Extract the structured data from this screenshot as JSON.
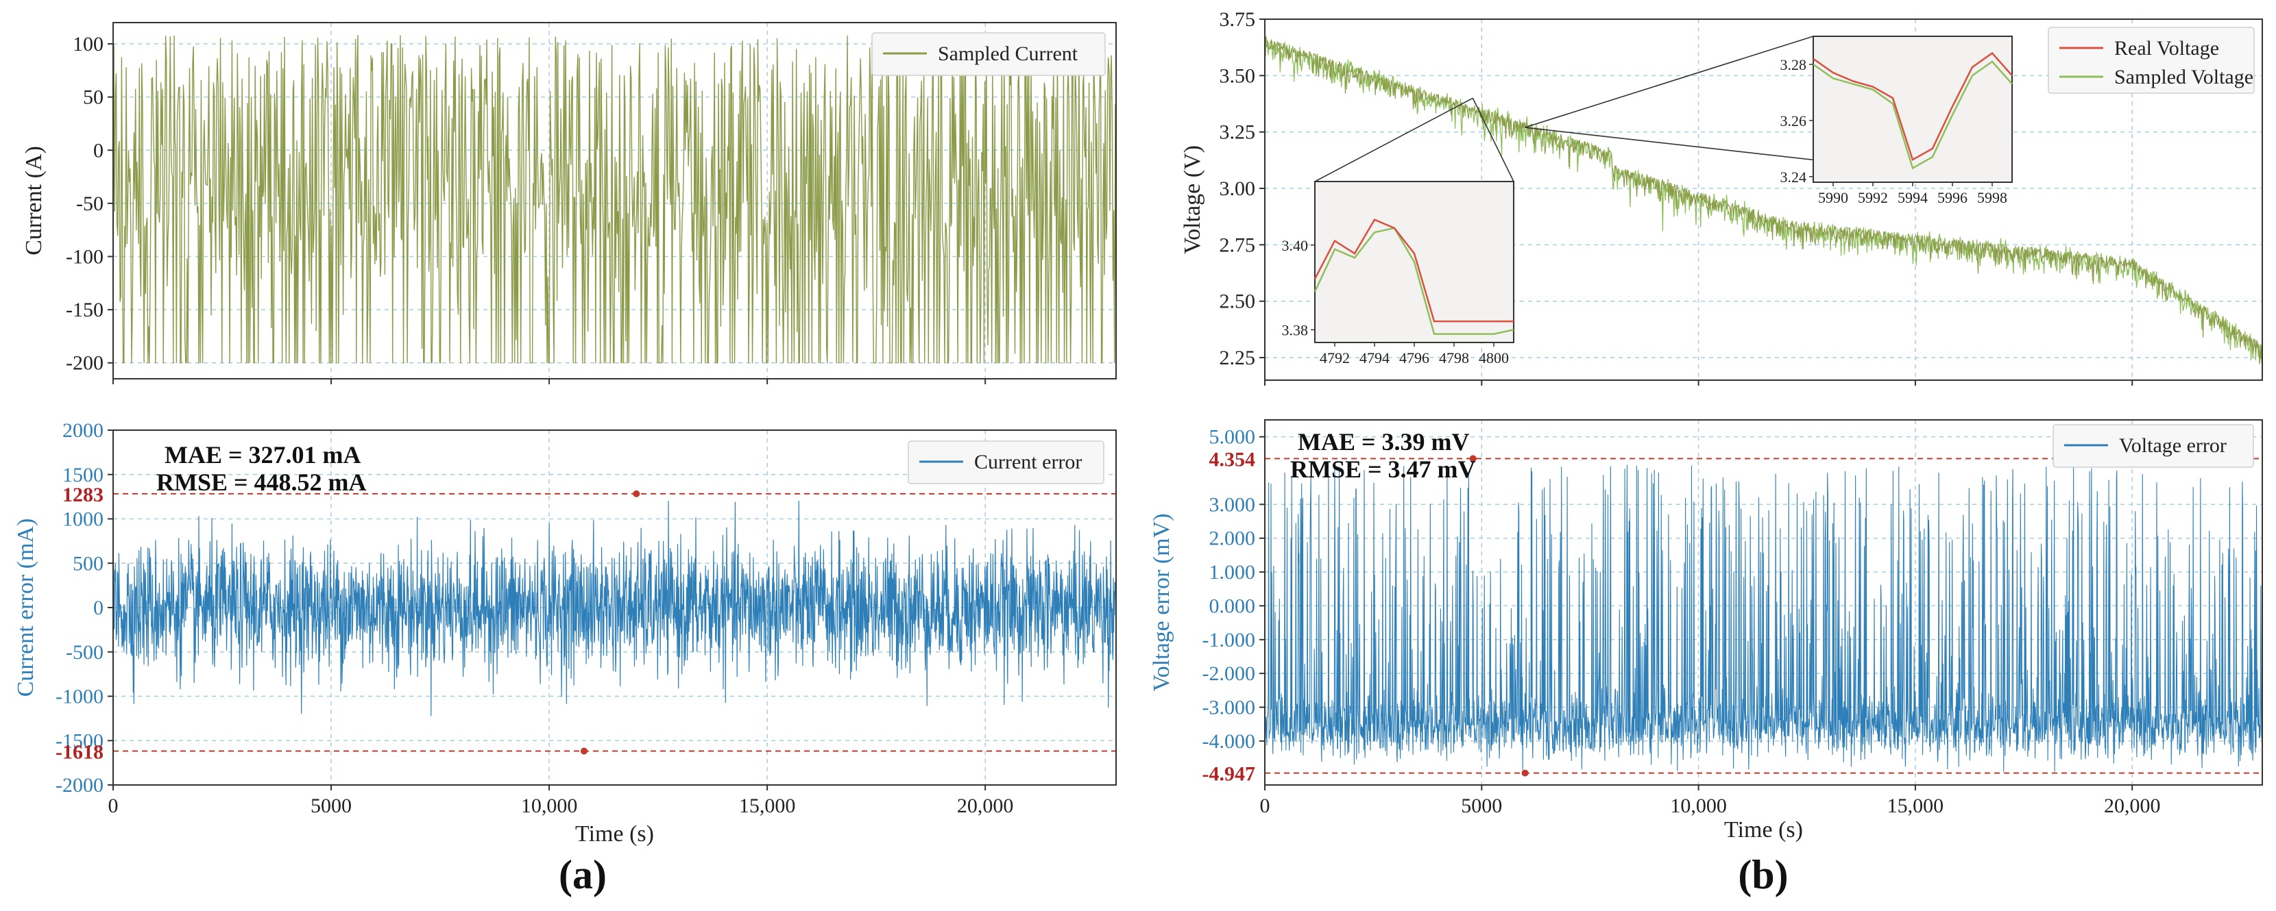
{
  "chart_data": [
    {
      "type": "line",
      "id": "current",
      "series": [
        {
          "name": "Sampled Current",
          "color": "#8c9b4a"
        }
      ],
      "xlim": [
        0,
        23000
      ],
      "ylim": [
        -215,
        120
      ],
      "yticks": [
        100,
        50,
        0,
        -50,
        -100,
        -150,
        -200
      ],
      "ylabel": "Current (A)",
      "xlabel": "",
      "grid": true,
      "legend_position": "top-right"
    },
    {
      "type": "line",
      "id": "current_error",
      "series": [
        {
          "name": "Current error",
          "color": "#2e7fb8"
        }
      ],
      "xlim": [
        0,
        23000
      ],
      "ylim": [
        -2000,
        2000
      ],
      "xticks": [
        "0",
        "5000",
        "10,000",
        "15,000",
        "20,000"
      ],
      "xtick_values": [
        0,
        5000,
        10000,
        15000,
        20000
      ],
      "yticks": [
        2000,
        1500,
        1000,
        500,
        0,
        -500,
        -1000,
        -1500,
        -2000
      ],
      "ylabel": "Current error (mA)",
      "xlabel": "Time (s)",
      "annotations": [
        "MAE = 327.01 mA",
        "RMSE = 448.52 mA"
      ],
      "max_line": {
        "value": 1283,
        "label": "1283",
        "x": 12000
      },
      "min_line": {
        "value": -1618,
        "label": "-1618",
        "x": 10800
      },
      "grid": true,
      "legend_position": "top-right",
      "panel_label": "(a)"
    },
    {
      "type": "line",
      "id": "voltage",
      "series": [
        {
          "name": "Real Voltage",
          "color": "#d9503f"
        },
        {
          "name": "Sampled Voltage",
          "color": "#8fbf5a"
        }
      ],
      "xlim": [
        0,
        23000
      ],
      "ylim": [
        2.15,
        3.75
      ],
      "yticks": [
        "3.75",
        "3.50",
        "3.25",
        "3.00",
        "2.75",
        "2.50",
        "2.25"
      ],
      "ytick_values": [
        3.75,
        3.5,
        3.25,
        3.0,
        2.75,
        2.5,
        2.25
      ],
      "ylabel": "Voltage (V)",
      "xlabel": "",
      "grid": true,
      "legend_position": "top-right",
      "inset_left": {
        "xlim": [
          4791,
          4801
        ],
        "ylim": [
          3.377,
          3.415
        ],
        "xticks": [
          4792,
          4794,
          4796,
          4798,
          4800
        ],
        "yticks": [
          "3.40",
          "3.38"
        ],
        "ytick_values": [
          3.4,
          3.38
        ],
        "real": [
          [
            4791,
            3.392
          ],
          [
            4792,
            3.401
          ],
          [
            4793,
            3.398
          ],
          [
            4794,
            3.406
          ],
          [
            4795,
            3.404
          ],
          [
            4796,
            3.398
          ],
          [
            4797,
            3.382
          ],
          [
            4798,
            3.382
          ],
          [
            4799,
            3.382
          ],
          [
            4800,
            3.382
          ],
          [
            4801,
            3.382
          ]
        ],
        "sampled": [
          [
            4791,
            3.389
          ],
          [
            4792,
            3.399
          ],
          [
            4793,
            3.397
          ],
          [
            4794,
            3.403
          ],
          [
            4795,
            3.404
          ],
          [
            4796,
            3.396
          ],
          [
            4797,
            3.379
          ],
          [
            4798,
            3.379
          ],
          [
            4799,
            3.379
          ],
          [
            4800,
            3.379
          ],
          [
            4801,
            3.38
          ]
        ]
      },
      "inset_right": {
        "xlim": [
          5989,
          5999
        ],
        "ylim": [
          3.238,
          3.29
        ],
        "xticks": [
          5990,
          5992,
          5994,
          5996,
          5998
        ],
        "yticks": [
          "3.28",
          "3.26",
          "3.24"
        ],
        "ytick_values": [
          3.28,
          3.26,
          3.24
        ],
        "real": [
          [
            5989,
            3.282
          ],
          [
            5990,
            3.277
          ],
          [
            5991,
            3.274
          ],
          [
            5992,
            3.272
          ],
          [
            5993,
            3.268
          ],
          [
            5994,
            3.246
          ],
          [
            5995,
            3.25
          ],
          [
            5996,
            3.265
          ],
          [
            5997,
            3.279
          ],
          [
            5998,
            3.284
          ],
          [
            5999,
            3.276
          ]
        ],
        "sampled": [
          [
            5989,
            3.28
          ],
          [
            5990,
            3.275
          ],
          [
            5991,
            3.273
          ],
          [
            5992,
            3.271
          ],
          [
            5993,
            3.266
          ],
          [
            5994,
            3.243
          ],
          [
            5995,
            3.247
          ],
          [
            5996,
            3.262
          ],
          [
            5997,
            3.276
          ],
          [
            5998,
            3.281
          ],
          [
            5999,
            3.273
          ]
        ]
      }
    },
    {
      "type": "line",
      "id": "voltage_error",
      "series": [
        {
          "name": "Voltage error",
          "color": "#2e7fb8"
        }
      ],
      "xlim": [
        0,
        23000
      ],
      "ylim": [
        -5.3,
        5.5
      ],
      "xticks": [
        "0",
        "5000",
        "10,000",
        "15,000",
        "20,000"
      ],
      "xtick_values": [
        0,
        5000,
        10000,
        15000,
        20000
      ],
      "yticks": [
        "5.000",
        "3.000",
        "2.000",
        "1.000",
        "0.000",
        "-1.000",
        "-2.000",
        "-3.000",
        "-4.000"
      ],
      "ytick_values": [
        5,
        3,
        2,
        1,
        0,
        -1,
        -2,
        -3,
        -4
      ],
      "ylabel": "Voltage error (mV)",
      "xlabel": "Time (s)",
      "annotations": [
        "MAE = 3.39 mV",
        "RMSE = 3.47 mV"
      ],
      "max_line": {
        "value": 4.354,
        "label": "4.354",
        "x": 4800
      },
      "min_line": {
        "value": -4.947,
        "label": "-4.947",
        "x": 6000
      },
      "grid": true,
      "legend_position": "top-right",
      "panel_label": "(b)"
    }
  ]
}
